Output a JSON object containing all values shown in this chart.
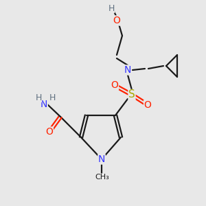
{
  "bg_color": "#e8e8e8",
  "atom_colors": {
    "C": "#1a1a1a",
    "N": "#3333ff",
    "O": "#ff2200",
    "S": "#aaaa00",
    "H": "#607080"
  },
  "bond_color": "#1a1a1a",
  "bond_lw": 1.6,
  "figsize": [
    3.0,
    3.0
  ],
  "dpi": 100
}
